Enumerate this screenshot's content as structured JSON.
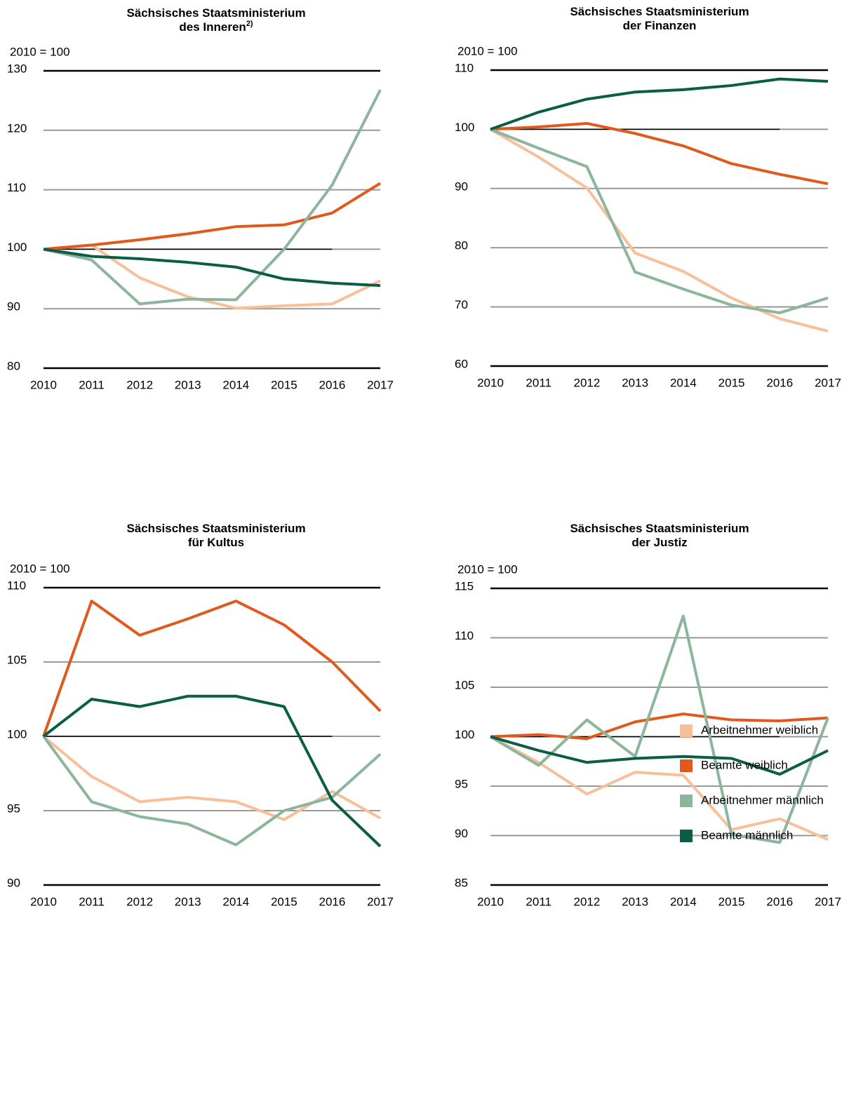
{
  "chart_data": [
    {
      "type": "line",
      "title_lines": [
        "Sächsisches Staatsministerium",
        "des Inneren"
      ],
      "title_note": "2)",
      "y_label": "2010 = 100",
      "x": [
        2010,
        2011,
        2012,
        2013,
        2014,
        2015,
        2016,
        2017
      ],
      "xlim": [
        2010,
        2017
      ],
      "xticks": [
        2010,
        2011,
        2012,
        2013,
        2014,
        2015,
        2016,
        2017
      ],
      "ylim": [
        80,
        130
      ],
      "yticks": [
        80,
        90,
        100,
        110,
        120,
        130
      ],
      "grid": true,
      "baseline": {
        "value": 100,
        "x": [
          2010,
          2016
        ]
      },
      "series": [
        {
          "name": "Arbeitnehmer weiblich",
          "color": "#f8c09a",
          "values": [
            100,
            100.7,
            95.2,
            92,
            90.1,
            90.5,
            90.8,
            94.7
          ]
        },
        {
          "name": "Beamte weiblich",
          "color": "#e05a1e",
          "values": [
            100,
            100.7,
            101.6,
            102.6,
            103.8,
            104.1,
            106.1,
            111.1
          ]
        },
        {
          "name": "Arbeitnehmer männlich",
          "color": "#8db59b",
          "values": [
            100,
            98.2,
            90.8,
            91.6,
            91.5,
            100,
            110.8,
            126.8
          ]
        },
        {
          "name": "Beamte männlich",
          "color": "#0b5e45",
          "values": [
            100,
            98.8,
            98.4,
            97.8,
            97,
            95,
            94.3,
            93.9
          ]
        }
      ]
    },
    {
      "type": "line",
      "title_lines": [
        "Sächsisches Staatsministerium",
        "der Finanzen"
      ],
      "y_label": "2010 = 100",
      "x": [
        2010,
        2011,
        2012,
        2013,
        2014,
        2015,
        2016,
        2017
      ],
      "xlim": [
        2010,
        2017
      ],
      "xticks": [
        2010,
        2011,
        2012,
        2013,
        2014,
        2015,
        2016,
        2017
      ],
      "ylim": [
        60,
        110
      ],
      "yticks": [
        60,
        70,
        80,
        90,
        100,
        110
      ],
      "grid": true,
      "baseline": {
        "value": 100,
        "x": [
          2010,
          2016
        ]
      },
      "series": [
        {
          "name": "Arbeitnehmer weiblich",
          "color": "#f8c09a",
          "values": [
            100,
            95.3,
            90.1,
            79.1,
            76,
            71.5,
            68,
            65.9
          ]
        },
        {
          "name": "Beamte weiblich",
          "color": "#e05a1e",
          "values": [
            100,
            100.4,
            101,
            99.3,
            97.2,
            94.2,
            92.4,
            90.8
          ]
        },
        {
          "name": "Arbeitnehmer männlich",
          "color": "#8db59b",
          "values": [
            100,
            96.8,
            93.7,
            75.9,
            73,
            70.3,
            69,
            71.5
          ]
        },
        {
          "name": "Beamte männlich",
          "color": "#0b5e45",
          "values": [
            100,
            102.9,
            105.1,
            106.3,
            106.7,
            107.4,
            108.5,
            108.1
          ]
        }
      ]
    },
    {
      "type": "line",
      "title_lines": [
        "Sächsisches Staatsministerium",
        "für Kultus"
      ],
      "y_label": "2010 = 100",
      "x": [
        2010,
        2011,
        2012,
        2013,
        2014,
        2015,
        2016,
        2017
      ],
      "xlim": [
        2010,
        2017
      ],
      "xticks": [
        2010,
        2011,
        2012,
        2013,
        2014,
        2015,
        2016,
        2017
      ],
      "ylim": [
        90,
        110
      ],
      "yticks": [
        90,
        95,
        100,
        105,
        110
      ],
      "grid": true,
      "baseline": {
        "value": 100,
        "x": [
          2010,
          2016
        ]
      },
      "series": [
        {
          "name": "Arbeitnehmer weiblich",
          "color": "#f8c09a",
          "values": [
            100,
            97.3,
            95.6,
            95.9,
            95.6,
            94.4,
            96.3,
            94.5
          ]
        },
        {
          "name": "Beamte weiblich",
          "color": "#e05a1e",
          "values": [
            100,
            109.1,
            106.8,
            107.9,
            109.1,
            107.5,
            105,
            101.7
          ]
        },
        {
          "name": "Arbeitnehmer männlich",
          "color": "#8db59b",
          "values": [
            100,
            95.6,
            94.6,
            94.1,
            92.7,
            95,
            95.9,
            98.8
          ]
        },
        {
          "name": "Beamte männlich",
          "color": "#0b5e45",
          "values": [
            100,
            102.5,
            102,
            102.7,
            102.7,
            102,
            95.7,
            92.6
          ]
        }
      ]
    },
    {
      "type": "line",
      "title_lines": [
        "Sächsisches Staatsministerium",
        "der Justiz"
      ],
      "y_label": "2010 = 100",
      "x": [
        2010,
        2011,
        2012,
        2013,
        2014,
        2015,
        2016,
        2017
      ],
      "xlim": [
        2010,
        2017
      ],
      "xticks": [
        2010,
        2011,
        2012,
        2013,
        2014,
        2015,
        2016,
        2017
      ],
      "ylim": [
        85,
        115
      ],
      "yticks": [
        85,
        90,
        95,
        100,
        105,
        110,
        115
      ],
      "grid": true,
      "baseline": {
        "value": 100,
        "x": [
          2010,
          2016
        ]
      },
      "series": [
        {
          "name": "Arbeitnehmer weiblich",
          "color": "#f8c09a",
          "values": [
            100,
            97.4,
            94.2,
            96.4,
            96.1,
            90.6,
            91.7,
            89.6
          ]
        },
        {
          "name": "Beamte weiblich",
          "color": "#e05a1e",
          "values": [
            100,
            100.2,
            99.8,
            101.5,
            102.3,
            101.7,
            101.6,
            101.9
          ]
        },
        {
          "name": "Arbeitnehmer männlich",
          "color": "#8db59b",
          "values": [
            100,
            97.1,
            101.7,
            98,
            112.2,
            90.1,
            89.3,
            101.9
          ]
        },
        {
          "name": "Beamte männlich",
          "color": "#0b5e45",
          "values": [
            100,
            98.6,
            97.4,
            97.8,
            98,
            97.8,
            96.2,
            98.6
          ]
        }
      ]
    }
  ]
}
